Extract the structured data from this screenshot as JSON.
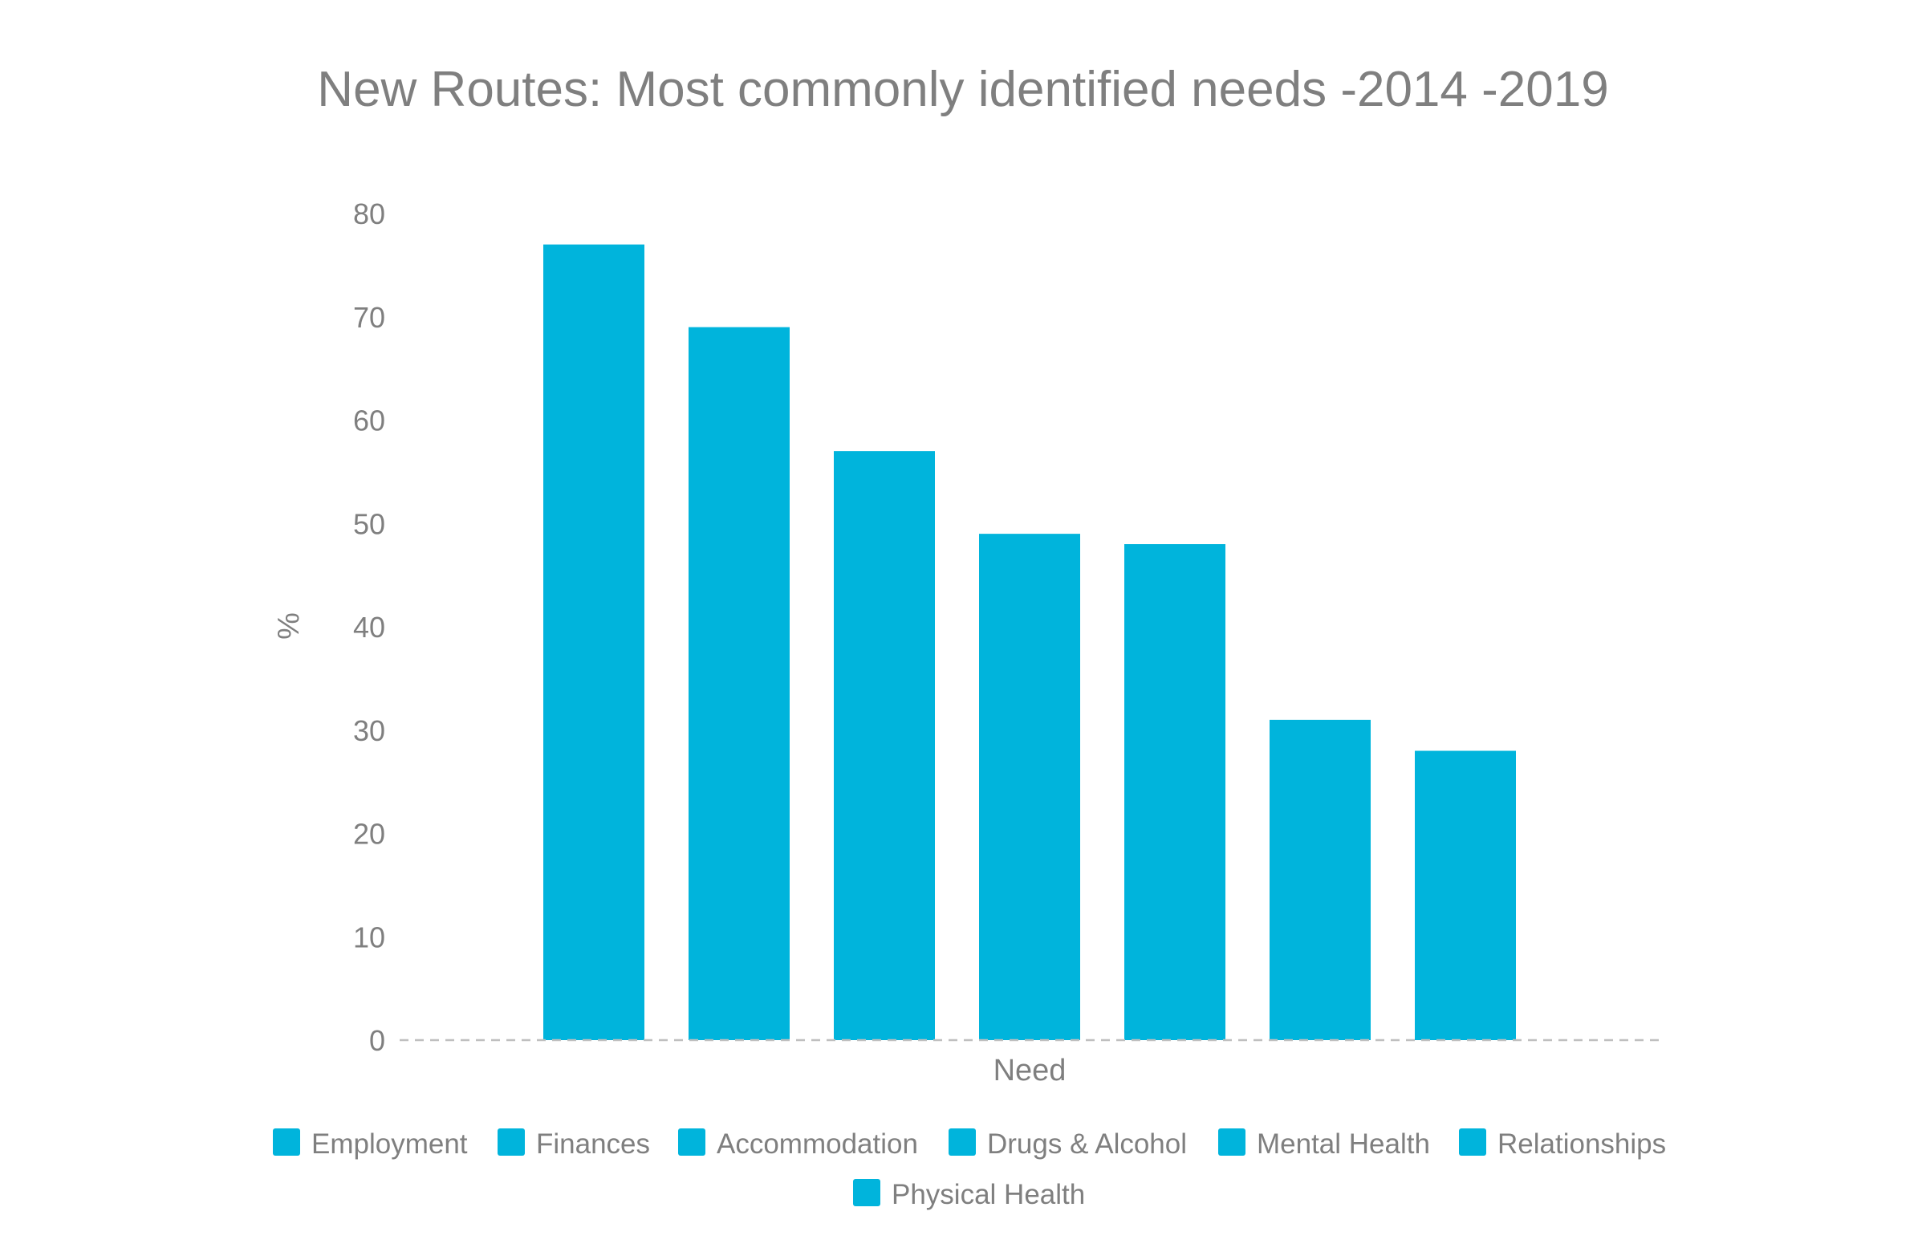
{
  "chart_data": {
    "type": "bar",
    "title": "New Routes: Most commonly identified needs -2014 -2019",
    "xlabel": "Need",
    "ylabel": "%",
    "categories": [
      "Employment",
      "Finances",
      "Accommodation",
      "Drugs & Alcohol",
      "Mental Health",
      "Relationships",
      "Physical Health"
    ],
    "values": [
      77,
      69,
      57,
      49,
      48,
      31,
      28
    ],
    "ylim": [
      0,
      80
    ],
    "yticks": [
      0,
      10,
      20,
      30,
      40,
      50,
      60,
      70,
      80
    ],
    "grid": false,
    "legend": "bottom",
    "colors": {
      "bar": "#00b4dc",
      "text": "#7f7f7f",
      "baseline": "#bfbfbf"
    }
  }
}
